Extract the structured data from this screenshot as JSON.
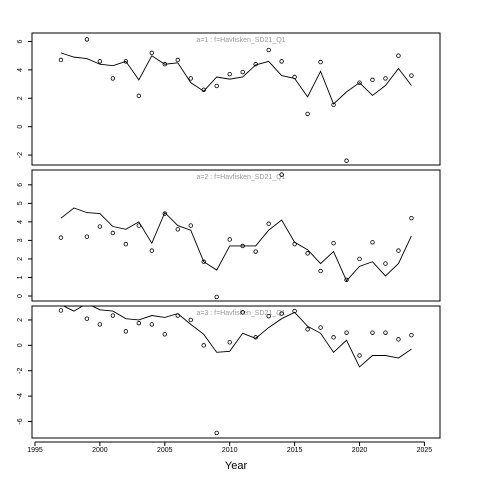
{
  "chart_data": [
    {
      "type": "line",
      "title": "a=1 : f=Havfisken_SD21_Q1",
      "x": [
        1997,
        1998,
        1999,
        2000,
        2001,
        2002,
        2003,
        2004,
        2005,
        2006,
        2007,
        2008,
        2009,
        2010,
        2011,
        2012,
        2013,
        2014,
        2015,
        2016,
        2017,
        2018,
        2019,
        2020,
        2021,
        2022,
        2023,
        2024
      ],
      "series": [
        {
          "mode": "markers",
          "color": "#000000",
          "values": [
            4.7,
            null,
            6.15,
            4.6,
            3.4,
            4.6,
            2.17,
            5.2,
            4.4,
            4.7,
            3.4,
            2.6,
            2.87,
            3.7,
            3.85,
            4.4,
            5.4,
            4.6,
            3.5,
            0.9,
            4.55,
            1.54,
            -2.4,
            3.1,
            3.3,
            3.4,
            5.0,
            3.6
          ]
        },
        {
          "mode": "lines",
          "color": "#000000",
          "values": [
            5.2,
            4.9,
            4.8,
            4.4,
            4.3,
            4.6,
            3.3,
            5.0,
            4.4,
            4.5,
            3.1,
            2.5,
            3.5,
            3.35,
            3.5,
            4.35,
            4.6,
            3.6,
            3.4,
            2.1,
            3.9,
            1.6,
            2.45,
            3.1,
            2.2,
            2.9,
            4.1,
            2.9
          ]
        }
      ],
      "xlim": [
        1994.77,
        2026.2
      ],
      "ylim": [
        -2.7,
        6.6
      ],
      "yticks": [
        -2,
        0,
        2,
        4,
        6
      ]
    },
    {
      "type": "line",
      "title": "a=2 : f=Havfisken_SD21_Q1",
      "x": [
        1997,
        1998,
        1999,
        2000,
        2001,
        2002,
        2003,
        2004,
        2005,
        2006,
        2007,
        2008,
        2009,
        2010,
        2011,
        2012,
        2013,
        2014,
        2015,
        2016,
        2017,
        2018,
        2019,
        2020,
        2021,
        2022,
        2023,
        2024
      ],
      "series": [
        {
          "mode": "markers",
          "color": "#000000",
          "values": [
            3.15,
            null,
            3.2,
            3.75,
            3.4,
            2.8,
            3.8,
            2.45,
            4.45,
            3.6,
            3.8,
            1.85,
            -0.05,
            3.05,
            2.7,
            2.4,
            3.9,
            6.55,
            2.8,
            2.3,
            1.35,
            2.85,
            0.87,
            2.0,
            2.9,
            1.75,
            2.45,
            4.2
          ]
        },
        {
          "mode": "lines",
          "color": "#000000",
          "values": [
            4.2,
            4.75,
            4.5,
            4.45,
            3.75,
            3.6,
            4.0,
            2.85,
            4.5,
            3.8,
            3.55,
            1.85,
            1.4,
            2.7,
            2.7,
            2.7,
            3.55,
            4.1,
            2.9,
            2.5,
            1.75,
            2.4,
            0.82,
            1.6,
            1.85,
            1.08,
            1.75,
            3.25
          ]
        }
      ],
      "xlim": [
        1994.77,
        2026.2
      ],
      "ylim": [
        -0.27,
        6.8
      ],
      "yticks": [
        0,
        1,
        2,
        3,
        4,
        5,
        6
      ]
    },
    {
      "type": "line",
      "title": "a=3 : f=Havfisken_SD21_Q1",
      "xlabel": "Year",
      "x": [
        1997,
        1998,
        1999,
        2000,
        2001,
        2002,
        2003,
        2004,
        2005,
        2006,
        2007,
        2008,
        2009,
        2010,
        2011,
        2012,
        2013,
        2014,
        2015,
        2016,
        2017,
        2018,
        2019,
        2020,
        2021,
        2022,
        2023,
        2024
      ],
      "series": [
        {
          "mode": "markers",
          "color": "#000000",
          "values": [
            2.75,
            null,
            2.1,
            1.65,
            2.35,
            1.1,
            1.75,
            1.65,
            0.87,
            2.35,
            2.0,
            0,
            -6.9,
            0.24,
            2.6,
            0.63,
            2.3,
            2.5,
            2.7,
            1.26,
            1.4,
            0.63,
            1.0,
            -0.8,
            1.0,
            1.0,
            0.47,
            0.8
          ]
        },
        {
          "mode": "lines",
          "color": "#000000",
          "values": [
            3.2,
            2.7,
            3.3,
            2.8,
            2.7,
            2.1,
            2.0,
            2.35,
            2.2,
            2.5,
            1.65,
            0.87,
            -0.55,
            -0.47,
            0.95,
            0.55,
            1.4,
            2.1,
            2.6,
            1.5,
            0.95,
            -0.55,
            0.4,
            -1.7,
            -0.8,
            -0.8,
            -1.0,
            -0.3
          ]
        }
      ],
      "xlim": [
        1994.77,
        2026.2
      ],
      "ylim": [
        -7.3,
        3.1
      ],
      "yticks": [
        -6,
        -4,
        -2,
        0,
        2
      ],
      "xticks": [
        1995,
        2000,
        2005,
        2010,
        2015,
        2020,
        2025
      ]
    }
  ]
}
